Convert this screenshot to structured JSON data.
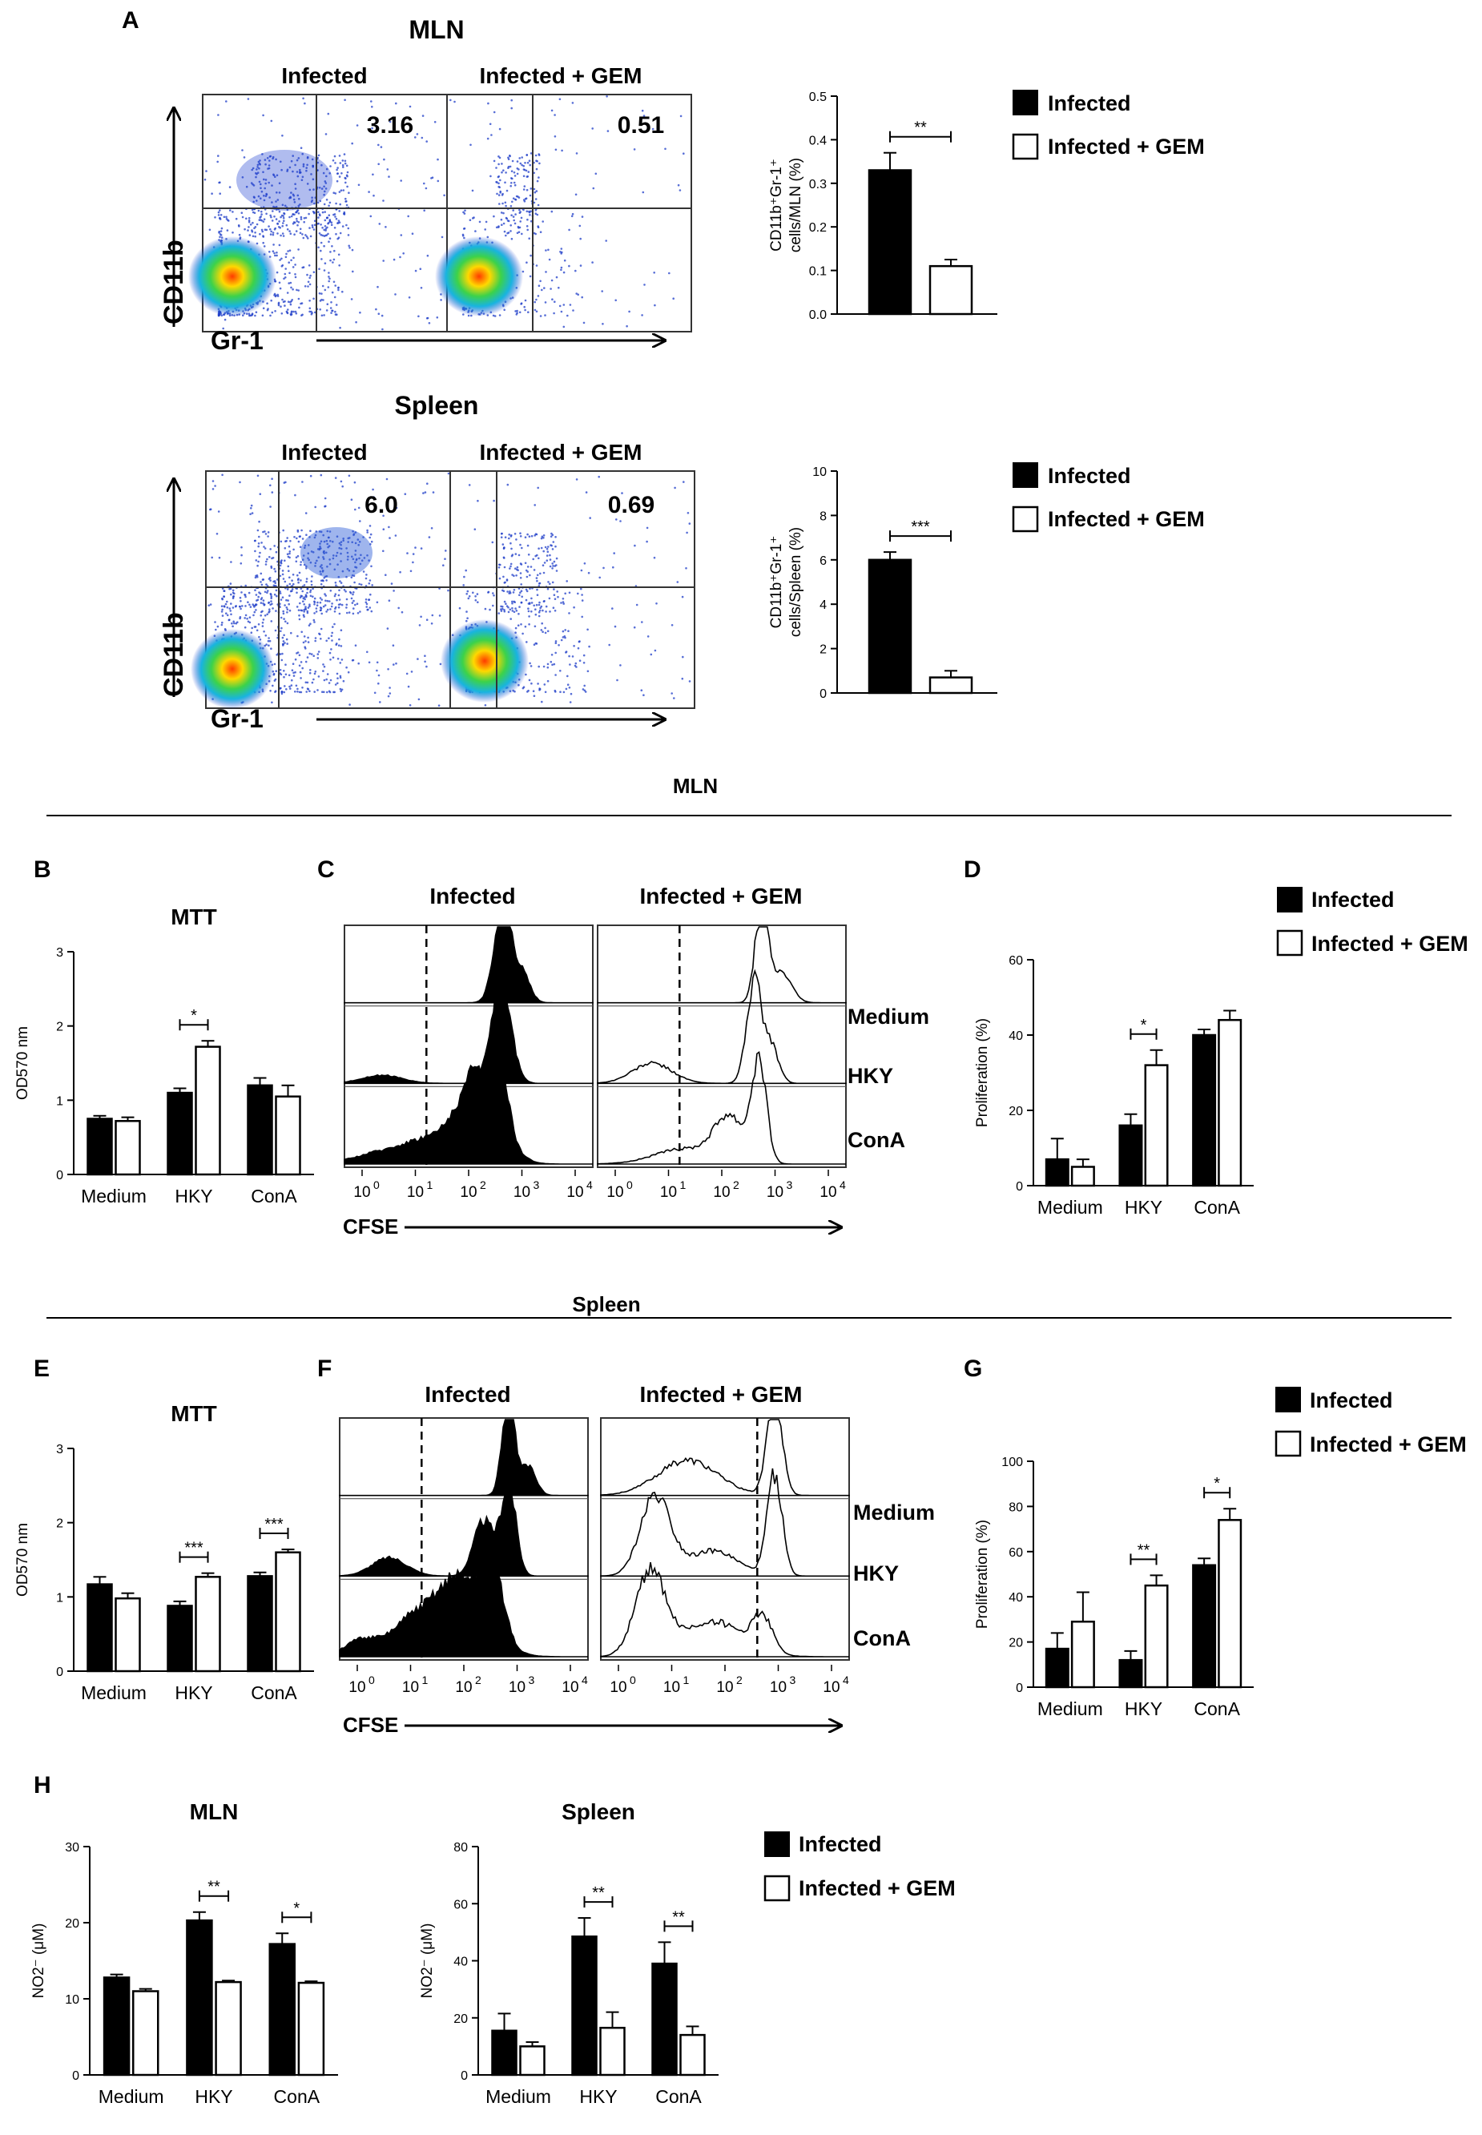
{
  "panels": {
    "A": "A",
    "B": "B",
    "C": "C",
    "D": "D",
    "E": "E",
    "F": "F",
    "G": "G",
    "H": "H"
  },
  "sections": {
    "mln": "MLN",
    "spleen": "Spleen"
  },
  "legend": {
    "infected": "Infected",
    "gem": "Infected + GEM"
  },
  "colors": {
    "infected": "#000000",
    "gem": "#ffffff"
  },
  "flow": {
    "title_mln": "MLN",
    "title_spleen": "Spleen",
    "col1": "Infected",
    "col2": "Infected + GEM",
    "yaxis": "CD11b",
    "xaxis": "Gr-1",
    "mln_values": [
      "3.16",
      "0.51"
    ],
    "spleen_values": [
      "6.0",
      "0.69"
    ]
  },
  "cfse": {
    "col1": "Infected",
    "col2": "Infected + GEM",
    "rows": [
      "Medium",
      "HKY",
      "ConA"
    ],
    "xaxis": "CFSE",
    "ticks": [
      "10",
      "10",
      "10",
      "10",
      "10"
    ],
    "exps": [
      "0",
      "1",
      "2",
      "3",
      "4"
    ]
  },
  "chart_data": [
    {
      "id": "A_mln",
      "type": "bar",
      "categories": [
        "Infected",
        "Infected + GEM"
      ],
      "values": [
        0.33,
        0.11
      ],
      "errors": [
        0.04,
        0.015
      ],
      "ylim": [
        0,
        0.5
      ],
      "yticks": [
        "0.0",
        "0.1",
        "0.2",
        "0.3",
        "0.4",
        "0.5"
      ],
      "ylabel_lines": [
        "CD11b⁺Gr-1⁺",
        "cells/MLN (%)"
      ],
      "sig": [
        {
          "label": "**"
        }
      ]
    },
    {
      "id": "A_spleen",
      "type": "bar",
      "categories": [
        "Infected",
        "Infected + GEM"
      ],
      "values": [
        6.0,
        0.7
      ],
      "errors": [
        0.35,
        0.3
      ],
      "ylim": [
        0,
        10
      ],
      "yticks": [
        "0",
        "2",
        "4",
        "6",
        "8",
        "10"
      ],
      "ylabel_lines": [
        "CD11b⁺Gr-1⁺",
        "cells/Spleen (%)"
      ],
      "sig": [
        {
          "label": "***"
        }
      ]
    },
    {
      "id": "B",
      "type": "bar",
      "title": "MTT",
      "categories": [
        "Medium",
        "HKY",
        "ConA"
      ],
      "series": [
        {
          "name": "Infected",
          "values": [
            0.75,
            1.1,
            1.2
          ],
          "errors": [
            0.04,
            0.06,
            0.1
          ]
        },
        {
          "name": "Infected + GEM",
          "values": [
            0.72,
            1.72,
            1.05
          ],
          "errors": [
            0.05,
            0.08,
            0.15
          ]
        }
      ],
      "ylim": [
        0,
        3
      ],
      "yticks": [
        "0",
        "1",
        "2",
        "3"
      ],
      "ylabel": "OD570 nm",
      "sig": [
        {
          "cat": 1,
          "label": "*"
        }
      ]
    },
    {
      "id": "D",
      "type": "bar",
      "categories": [
        "Medium",
        "HKY",
        "ConA"
      ],
      "series": [
        {
          "name": "Infected",
          "values": [
            7,
            16,
            40
          ],
          "errors": [
            5.5,
            3,
            1.5
          ]
        },
        {
          "name": "Infected + GEM",
          "values": [
            5,
            32,
            44
          ],
          "errors": [
            2,
            4,
            2.5
          ]
        }
      ],
      "ylim": [
        0,
        60
      ],
      "yticks": [
        "0",
        "20",
        "40",
        "60"
      ],
      "ylabel": "Proliferation (%)",
      "sig": [
        {
          "cat": 1,
          "label": "*"
        }
      ]
    },
    {
      "id": "E",
      "type": "bar",
      "title": "MTT",
      "categories": [
        "Medium",
        "HKY",
        "ConA"
      ],
      "series": [
        {
          "name": "Infected",
          "values": [
            1.17,
            0.88,
            1.28
          ],
          "errors": [
            0.1,
            0.06,
            0.05
          ]
        },
        {
          "name": "Infected + GEM",
          "values": [
            0.98,
            1.27,
            1.6
          ],
          "errors": [
            0.07,
            0.05,
            0.04
          ]
        }
      ],
      "ylim": [
        0,
        3
      ],
      "yticks": [
        "0",
        "1",
        "2",
        "3"
      ],
      "ylabel": "OD570 nm",
      "sig": [
        {
          "cat": 1,
          "label": "***"
        },
        {
          "cat": 2,
          "label": "***"
        }
      ]
    },
    {
      "id": "G",
      "type": "bar",
      "categories": [
        "Medium",
        "HKY",
        "ConA"
      ],
      "series": [
        {
          "name": "Infected",
          "values": [
            17,
            12,
            54
          ],
          "errors": [
            7,
            4,
            3
          ]
        },
        {
          "name": "Infected + GEM",
          "values": [
            29,
            45,
            74
          ],
          "errors": [
            13,
            4.5,
            5
          ]
        }
      ],
      "ylim": [
        0,
        100
      ],
      "yticks": [
        "0",
        "20",
        "40",
        "60",
        "80",
        "100"
      ],
      "ylabel": "Proliferation (%)",
      "sig": [
        {
          "cat": 1,
          "label": "**"
        },
        {
          "cat": 2,
          "label": "*"
        }
      ]
    },
    {
      "id": "H_mln",
      "type": "bar",
      "title": "MLN",
      "categories": [
        "Medium",
        "HKY",
        "ConA"
      ],
      "series": [
        {
          "name": "Infected",
          "values": [
            12.8,
            20.3,
            17.2
          ],
          "errors": [
            0.4,
            1.1,
            1.4
          ]
        },
        {
          "name": "Infected + GEM",
          "values": [
            11,
            12.2,
            12.1
          ],
          "errors": [
            0.3,
            0.2,
            0.2
          ]
        }
      ],
      "ylim": [
        0,
        30
      ],
      "yticks": [
        "0",
        "10",
        "20",
        "30"
      ],
      "ylabel": "NO2⁻ (μM)",
      "sig": [
        {
          "cat": 1,
          "label": "**"
        },
        {
          "cat": 2,
          "label": "*"
        }
      ]
    },
    {
      "id": "H_spleen",
      "type": "bar",
      "title": "Spleen",
      "categories": [
        "Medium",
        "HKY",
        "ConA"
      ],
      "series": [
        {
          "name": "Infected",
          "values": [
            15.5,
            48.5,
            39
          ],
          "errors": [
            6,
            6.5,
            7.5
          ]
        },
        {
          "name": "Infected + GEM",
          "values": [
            10,
            16.5,
            14
          ],
          "errors": [
            1.5,
            5.5,
            3
          ]
        }
      ],
      "ylim": [
        0,
        80
      ],
      "yticks": [
        "0",
        "20",
        "40",
        "60",
        "80"
      ],
      "ylabel": "NO2⁻ (μM)",
      "sig": [
        {
          "cat": 1,
          "label": "**"
        },
        {
          "cat": 2,
          "label": "**"
        }
      ]
    }
  ]
}
